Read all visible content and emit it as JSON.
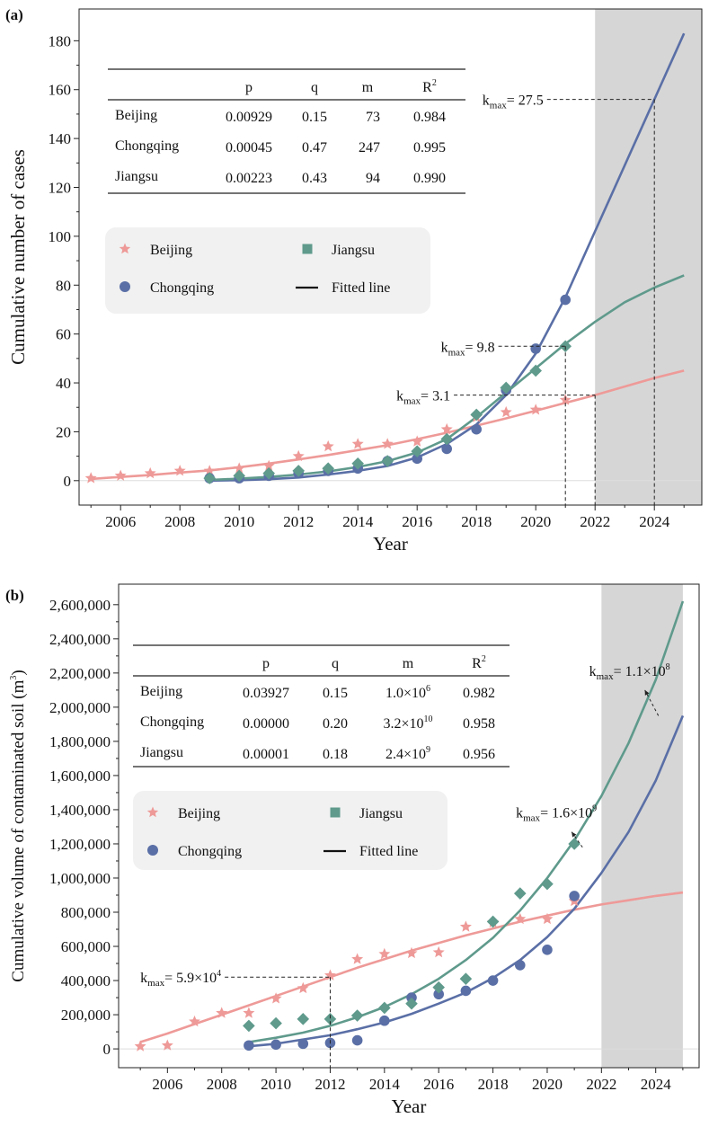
{
  "chart_data": [
    {
      "type": "scatter",
      "panel_label": "(a)",
      "xlabel": "Year",
      "ylabel": "Cumulative number of cases",
      "xlim": [
        2004.6,
        2025.6
      ],
      "ylim": [
        -10,
        193
      ],
      "x_ticks": [
        2006,
        2008,
        2010,
        2012,
        2014,
        2016,
        2018,
        2020,
        2022,
        2024
      ],
      "y_ticks": [
        0,
        20,
        40,
        60,
        80,
        100,
        120,
        140,
        160,
        180
      ],
      "shaded_region": [
        2022,
        2025.6
      ],
      "table": {
        "headers": [
          "",
          "p",
          "q",
          "m",
          "R2"
        ],
        "header_display": {
          "r_base": "R",
          "r_sup": "2"
        },
        "rows": [
          [
            "Beijing",
            "0.00929",
            "0.15",
            "73",
            "0.984"
          ],
          [
            "Chongqing",
            "0.00045",
            "0.47",
            "247",
            "0.995"
          ],
          [
            "Jiangsu",
            "0.00223",
            "0.43",
            "94",
            "0.990"
          ]
        ]
      },
      "legend": {
        "beijing": "Beijing",
        "jiangsu": "Jiangsu",
        "chongqing": "Chongqing",
        "fitted": "Fitted line"
      },
      "series": [
        {
          "name": "Beijing",
          "marker": "star",
          "color": "#ee9a98",
          "points": [
            [
              2005,
              1
            ],
            [
              2006,
              2
            ],
            [
              2007,
              3
            ],
            [
              2008,
              4
            ],
            [
              2009,
              4
            ],
            [
              2010,
              5
            ],
            [
              2011,
              6
            ],
            [
              2012,
              10
            ],
            [
              2013,
              14
            ],
            [
              2014,
              15
            ],
            [
              2015,
              15
            ],
            [
              2016,
              16
            ],
            [
              2017,
              21
            ],
            [
              2018,
              26
            ],
            [
              2019,
              28
            ],
            [
              2020,
              29
            ],
            [
              2021,
              33
            ]
          ],
          "fit": [
            [
              2005,
              0.7
            ],
            [
              2006,
              1.5
            ],
            [
              2007,
              2.3
            ],
            [
              2008,
              3.3
            ],
            [
              2009,
              4.2
            ],
            [
              2010,
              5.5
            ],
            [
              2011,
              7
            ],
            [
              2012,
              8.7
            ],
            [
              2013,
              10.5
            ],
            [
              2014,
              12.5
            ],
            [
              2015,
              14.5
            ],
            [
              2016,
              17
            ],
            [
              2017,
              19.6
            ],
            [
              2018,
              22.5
            ],
            [
              2019,
              25.5
            ],
            [
              2020,
              28.6
            ],
            [
              2021,
              31.8
            ],
            [
              2022,
              35
            ],
            [
              2023,
              38.5
            ],
            [
              2024,
              42
            ],
            [
              2025,
              45
            ]
          ]
        },
        {
          "name": "Chongqing",
          "marker": "circle",
          "color": "#5a6fa6",
          "points": [
            [
              2009,
              1
            ],
            [
              2010,
              1
            ],
            [
              2011,
              2
            ],
            [
              2012,
              3
            ],
            [
              2013,
              4
            ],
            [
              2014,
              5
            ],
            [
              2015,
              8
            ],
            [
              2016,
              9
            ],
            [
              2017,
              13
            ],
            [
              2018,
              21
            ],
            [
              2019,
              37
            ],
            [
              2020,
              54
            ],
            [
              2021,
              74
            ]
          ],
          "fit": [
            [
              2009,
              0
            ],
            [
              2010,
              0.2
            ],
            [
              2011,
              0.6
            ],
            [
              2012,
              1.3
            ],
            [
              2013,
              2.5
            ],
            [
              2014,
              4
            ],
            [
              2015,
              6
            ],
            [
              2016,
              9.5
            ],
            [
              2017,
              15
            ],
            [
              2018,
              23
            ],
            [
              2019,
              35
            ],
            [
              2020,
              52
            ],
            [
              2021,
              75
            ],
            [
              2022,
              102
            ],
            [
              2023,
              129
            ],
            [
              2024,
              156
            ],
            [
              2025,
              183
            ]
          ]
        },
        {
          "name": "Jiangsu",
          "marker": "diamond",
          "color": "#5f9a8c",
          "points": [
            [
              2009,
              1
            ],
            [
              2010,
              2
            ],
            [
              2011,
              3
            ],
            [
              2012,
              4
            ],
            [
              2013,
              5
            ],
            [
              2014,
              7
            ],
            [
              2015,
              8
            ],
            [
              2016,
              12
            ],
            [
              2017,
              17
            ],
            [
              2018,
              27
            ],
            [
              2019,
              38
            ],
            [
              2020,
              45
            ],
            [
              2021,
              55
            ]
          ],
          "fit": [
            [
              2009,
              0.3
            ],
            [
              2010,
              0.8
            ],
            [
              2011,
              1.5
            ],
            [
              2012,
              2.5
            ],
            [
              2013,
              3.8
            ],
            [
              2014,
              5.6
            ],
            [
              2015,
              8
            ],
            [
              2016,
              11.5
            ],
            [
              2017,
              17
            ],
            [
              2018,
              26
            ],
            [
              2019,
              36
            ],
            [
              2020,
              46
            ],
            [
              2021,
              56
            ],
            [
              2022,
              65
            ],
            [
              2023,
              73
            ],
            [
              2024,
              79
            ],
            [
              2025,
              84
            ]
          ]
        }
      ],
      "annotations": [
        {
          "text_base": "k",
          "text_sub": "max",
          "text_rest": "= 27.5",
          "x": 2024,
          "y": 156,
          "label_x": 2018.2
        },
        {
          "text_base": "k",
          "text_sub": "max",
          "text_rest": "= 9.8",
          "x": 2021,
          "y": 55,
          "label_x": 2016.8
        },
        {
          "text_base": "k",
          "text_sub": "max",
          "text_rest": "= 3.1",
          "x": 2022,
          "y": 35,
          "label_x": 2015.3
        }
      ]
    },
    {
      "type": "scatter",
      "panel_label": "(b)",
      "xlabel": "Year",
      "ylabel_base": "Cumulative volume of contaminated soil (m",
      "ylabel_sup": "3",
      "ylabel_end": ")",
      "xlim": [
        2004.2,
        2025.6
      ],
      "ylim": [
        -110000,
        2720000
      ],
      "x_ticks": [
        2006,
        2008,
        2010,
        2012,
        2014,
        2016,
        2018,
        2020,
        2022,
        2024
      ],
      "y_ticks": [
        0,
        200000,
        400000,
        600000,
        800000,
        1000000,
        1200000,
        1400000,
        1600000,
        1800000,
        2000000,
        2200000,
        2400000,
        2600000
      ],
      "y_tick_labels": [
        "0",
        "200,000",
        "400,000",
        "600,000",
        "800,000",
        "1,000,000",
        "1,200,000",
        "1,400,000",
        "1,600,000",
        "1,800,000",
        "2,000,000",
        "2,200,000",
        "2,400,000",
        "2,600,000"
      ],
      "shaded_region": [
        2022,
        2025
      ],
      "table": {
        "headers": [
          "",
          "p",
          "q",
          "m",
          "R2"
        ],
        "header_display": {
          "r_base": "R",
          "r_sup": "2"
        },
        "rows": [
          [
            "Beijing",
            "0.03927",
            "0.15",
            "1.0×10",
            "6",
            "0.982"
          ],
          [
            "Chongqing",
            "0.00000",
            "0.20",
            "3.2×10",
            "10",
            "0.958"
          ],
          [
            "Jiangsu",
            "0.00001",
            "0.18",
            "2.4×10",
            "9",
            "0.956"
          ]
        ]
      },
      "legend": {
        "beijing": "Beijing",
        "jiangsu": "Jiangsu",
        "chongqing": "Chongqing",
        "fitted": "Fitted line"
      },
      "series": [
        {
          "name": "Beijing",
          "marker": "star",
          "color": "#ee9a98",
          "points": [
            [
              2005,
              15000
            ],
            [
              2006,
              20000
            ],
            [
              2007,
              160000
            ],
            [
              2008,
              210000
            ],
            [
              2009,
              210000
            ],
            [
              2010,
              295000
            ],
            [
              2011,
              355000
            ],
            [
              2012,
              430000
            ],
            [
              2013,
              525000
            ],
            [
              2014,
              555000
            ],
            [
              2015,
              560000
            ],
            [
              2016,
              565000
            ],
            [
              2017,
              715000
            ],
            [
              2018,
              740000
            ],
            [
              2019,
              760000
            ],
            [
              2020,
              760000
            ],
            [
              2021,
              865000
            ]
          ],
          "fit": [
            [
              2005,
              40000
            ],
            [
              2006,
              90000
            ],
            [
              2007,
              145000
            ],
            [
              2008,
              200000
            ],
            [
              2009,
              255000
            ],
            [
              2010,
              310000
            ],
            [
              2011,
              365000
            ],
            [
              2012,
              420000
            ],
            [
              2013,
              475000
            ],
            [
              2014,
              525000
            ],
            [
              2015,
              575000
            ],
            [
              2016,
              620000
            ],
            [
              2017,
              665000
            ],
            [
              2018,
              705000
            ],
            [
              2019,
              745000
            ],
            [
              2020,
              780000
            ],
            [
              2021,
              815000
            ],
            [
              2022,
              845000
            ],
            [
              2023,
              870000
            ],
            [
              2024,
              895000
            ],
            [
              2025,
              915000
            ]
          ]
        },
        {
          "name": "Chongqing",
          "marker": "circle",
          "color": "#5a6fa6",
          "points": [
            [
              2009,
              20000
            ],
            [
              2010,
              25000
            ],
            [
              2011,
              30000
            ],
            [
              2012,
              35000
            ],
            [
              2013,
              50000
            ],
            [
              2014,
              165000
            ],
            [
              2015,
              300000
            ],
            [
              2016,
              320000
            ],
            [
              2017,
              340000
            ],
            [
              2018,
              400000
            ],
            [
              2019,
              490000
            ],
            [
              2020,
              580000
            ],
            [
              2021,
              895000
            ]
          ],
          "fit": [
            [
              2009,
              15000
            ],
            [
              2010,
              30000
            ],
            [
              2011,
              55000
            ],
            [
              2012,
              80000
            ],
            [
              2013,
              115000
            ],
            [
              2014,
              155000
            ],
            [
              2015,
              205000
            ],
            [
              2016,
              265000
            ],
            [
              2017,
              330000
            ],
            [
              2018,
              415000
            ],
            [
              2019,
              520000
            ],
            [
              2020,
              655000
            ],
            [
              2021,
              820000
            ],
            [
              2022,
              1030000
            ],
            [
              2023,
              1270000
            ],
            [
              2024,
              1570000
            ],
            [
              2025,
              1950000
            ]
          ]
        },
        {
          "name": "Jiangsu",
          "marker": "diamond",
          "color": "#5f9a8c",
          "points": [
            [
              2009,
              135000
            ],
            [
              2010,
              150000
            ],
            [
              2011,
              175000
            ],
            [
              2012,
              175000
            ],
            [
              2013,
              195000
            ],
            [
              2014,
              240000
            ],
            [
              2015,
              265000
            ],
            [
              2016,
              360000
            ],
            [
              2017,
              410000
            ],
            [
              2018,
              745000
            ],
            [
              2019,
              910000
            ],
            [
              2020,
              965000
            ],
            [
              2021,
              1200000
            ]
          ],
          "fit": [
            [
              2009,
              40000
            ],
            [
              2010,
              65000
            ],
            [
              2011,
              95000
            ],
            [
              2012,
              135000
            ],
            [
              2013,
              185000
            ],
            [
              2014,
              245000
            ],
            [
              2015,
              320000
            ],
            [
              2016,
              410000
            ],
            [
              2017,
              520000
            ],
            [
              2018,
              650000
            ],
            [
              2019,
              810000
            ],
            [
              2020,
              1000000
            ],
            [
              2021,
              1220000
            ],
            [
              2022,
              1480000
            ],
            [
              2023,
              1790000
            ],
            [
              2024,
              2160000
            ],
            [
              2025,
              2620000
            ]
          ]
        }
      ],
      "annotations": [
        {
          "text_base": "k",
          "text_sub": "max",
          "text_rest": "= 1.1×10",
          "text_sup": "8",
          "kind": "arrow",
          "x": 2023.6,
          "y": 2100000,
          "from_x": 2024.1,
          "from_y": 1950000
        },
        {
          "text_base": "k",
          "text_sub": "max",
          "text_rest": "= 1.6×10",
          "text_sup": "9",
          "kind": "arrow",
          "x": 2020.9,
          "y": 1270000,
          "from_x": 2021.3,
          "from_y": 1180000
        },
        {
          "text_base": "k",
          "text_sub": "max",
          "text_rest": "= 5.9×10",
          "text_sup": "4",
          "kind": "dashed",
          "x": 2012,
          "y": 420000,
          "label_x": 2005
        }
      ]
    }
  ]
}
